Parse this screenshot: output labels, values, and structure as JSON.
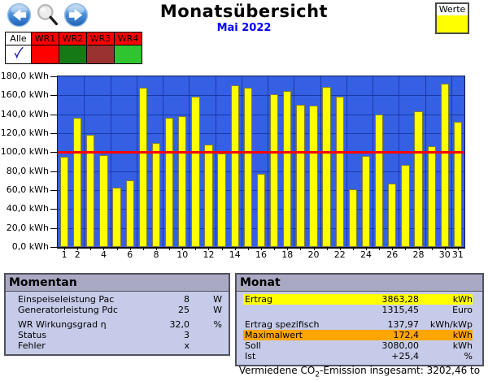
{
  "header": {
    "title": "Monatsübersicht",
    "subtitle": "Mai 2022",
    "legend_label": "Werte",
    "legend_color": "#ffff00"
  },
  "inverter_tabs": {
    "all_label": "Alle",
    "header_color": "#ff0000",
    "tabs": [
      {
        "label": "WR1",
        "status_color": "#ff0000"
      },
      {
        "label": "WR2",
        "status_color": "#157a15"
      },
      {
        "label": "WR3",
        "status_color": "#9b3232"
      },
      {
        "label": "WR4",
        "status_color": "#2ec52e"
      }
    ]
  },
  "chart_data": {
    "type": "bar",
    "title": "Monatsübersicht Mai 2022",
    "ylabel": "kWh",
    "ylim": [
      0,
      180
    ],
    "ytick_step": 20,
    "ytick_labels": [
      "180,0 kWh",
      "160,0 kWh",
      "140,0 kWh",
      "120,0 kWh",
      "100,0 kWh",
      "80,0 kWh",
      "60,0 kWh",
      "40,0 kWh",
      "20,0 kWh",
      "0,0 kWh"
    ],
    "categories": [
      1,
      2,
      3,
      4,
      5,
      6,
      7,
      8,
      9,
      10,
      11,
      12,
      13,
      14,
      15,
      16,
      17,
      18,
      19,
      20,
      21,
      22,
      23,
      24,
      25,
      26,
      27,
      28,
      29,
      30,
      31
    ],
    "values": [
      95,
      136,
      118,
      97,
      63,
      70,
      168,
      110,
      136,
      138,
      159,
      108,
      99,
      171,
      168,
      77,
      161,
      165,
      150,
      149,
      169,
      159,
      61,
      96,
      140,
      67,
      87,
      143,
      106,
      172.4,
      132
    ],
    "xtick_days": [
      1,
      2,
      4,
      6,
      8,
      10,
      12,
      14,
      16,
      18,
      20,
      22,
      24,
      26,
      28,
      30,
      31
    ],
    "xtick_labels": [
      "1",
      "2",
      "4",
      "6",
      "8",
      "10",
      "12",
      "14",
      "16",
      "18",
      "20",
      "22",
      "24",
      "26",
      "28",
      "30",
      "31"
    ],
    "bar_color": "#ffff00",
    "plot_bg_color": "#3560e4",
    "grid_color": "#1b38a8",
    "grid": true,
    "reference_line": {
      "value": 99.4,
      "color": "#ff0000"
    },
    "legend_position": "top-right"
  },
  "momentan": {
    "title": "Momentan",
    "rows": [
      {
        "label": "Einspeiseleistung Pac",
        "value": "8",
        "unit": "W"
      },
      {
        "label": "Generatorleistung Pdc",
        "value": "25",
        "unit": "W"
      },
      {
        "label": "WR Wirkungsgrad η",
        "value": "32,0",
        "unit": "%",
        "gap_before": true
      },
      {
        "label": "Status",
        "value": "3",
        "unit": ""
      },
      {
        "label": "Fehler",
        "value": "x",
        "unit": ""
      }
    ]
  },
  "monat": {
    "title": "Monat",
    "rows": [
      {
        "label": "Ertrag",
        "value": "3863,28",
        "unit": "kWh",
        "highlight": "#ffff00"
      },
      {
        "label": "",
        "value": "1315,45",
        "unit": "Euro"
      },
      {
        "label": "Ertrag spezifisch",
        "value": "137,97",
        "unit": "kWh/kWp",
        "gap_before": true
      },
      {
        "label": "Maximalwert",
        "value": "172,4",
        "unit": "kWh",
        "highlight": "#ffa500"
      },
      {
        "label": "Soll",
        "value": "3080,00",
        "unit": "kWh"
      },
      {
        "label": "Ist",
        "value": "+25,4",
        "unit": "%"
      }
    ]
  },
  "footer": {
    "co2_prefix": "Vermiedene CO",
    "co2_sub": "2",
    "co2_suffix": "-Emission insgesamt: 3202,46 to"
  }
}
